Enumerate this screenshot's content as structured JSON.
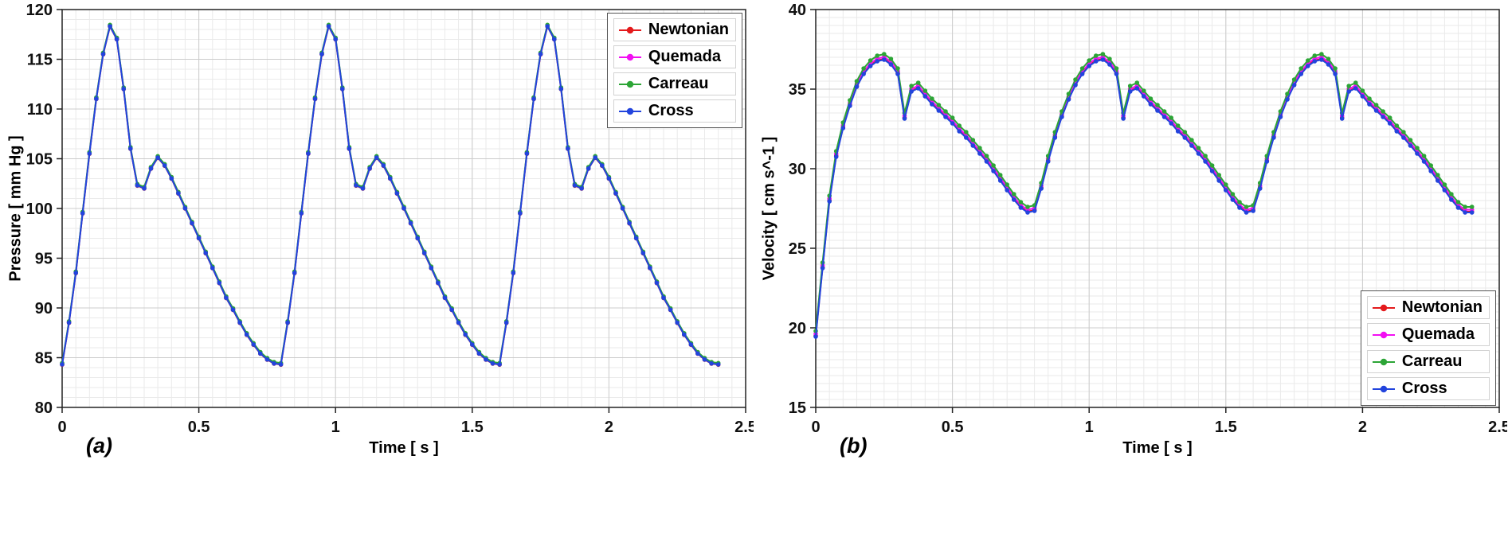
{
  "page": {
    "background": "#ffffff"
  },
  "chart_data": [
    {
      "id": "a",
      "type": "line",
      "panel_label": "(a)",
      "title": "",
      "xlabel": "Time [ s ]",
      "ylabel": "Pressure [ mm Hg ]",
      "xlim": [
        0,
        2.5
      ],
      "ylim": [
        80,
        120
      ],
      "xticks": [
        0,
        0.5,
        1,
        1.5,
        2,
        2.5
      ],
      "xtick_labels": [
        "0",
        "0.5",
        "1",
        "1.5",
        "2",
        "2.5"
      ],
      "yticks": [
        80,
        85,
        90,
        95,
        100,
        105,
        110,
        115,
        120
      ],
      "ytick_labels": [
        "80",
        "85",
        "90",
        "95",
        "100",
        "105",
        "110",
        "115",
        "120"
      ],
      "grid": {
        "x_minor": 0.05,
        "y_minor": 1,
        "minor_color": "#eaeaea",
        "major_color": "#cccccc"
      },
      "legend_position": "top-right",
      "x": [
        0,
        0.025,
        0.05,
        0.075,
        0.1,
        0.125,
        0.15,
        0.175,
        0.2,
        0.225,
        0.25,
        0.275,
        0.3,
        0.325,
        0.35,
        0.375,
        0.4,
        0.425,
        0.45,
        0.475,
        0.5,
        0.525,
        0.55,
        0.575,
        0.6,
        0.625,
        0.65,
        0.675,
        0.7,
        0.725,
        0.75,
        0.775,
        0.8,
        0.825,
        0.85,
        0.875,
        0.9,
        0.925,
        0.95,
        0.975,
        1,
        1.025,
        1.05,
        1.075,
        1.1,
        1.125,
        1.15,
        1.175,
        1.2,
        1.225,
        1.25,
        1.275,
        1.3,
        1.325,
        1.35,
        1.375,
        1.4,
        1.425,
        1.45,
        1.475,
        1.5,
        1.525,
        1.55,
        1.575,
        1.6,
        1.625,
        1.65,
        1.675,
        1.7,
        1.725,
        1.75,
        1.775,
        1.8,
        1.825,
        1.85,
        1.875,
        1.9,
        1.925,
        1.95,
        1.975,
        2,
        2.025,
        2.05,
        2.075,
        2.1,
        2.125,
        2.15,
        2.175,
        2.2,
        2.225,
        2.25,
        2.275,
        2.3,
        2.325,
        2.35,
        2.375,
        2.4
      ],
      "base_values": [
        84.3,
        88.5,
        93.5,
        99.5,
        105.5,
        111,
        115.5,
        118.3,
        117,
        112,
        106,
        102.3,
        102,
        104,
        105.1,
        104.3,
        103,
        101.5,
        100,
        98.5,
        97,
        95.5,
        94,
        92.5,
        91,
        89.8,
        88.5,
        87.3,
        86.3,
        85.4,
        84.8,
        84.4,
        84.3,
        88.5,
        93.5,
        99.5,
        105.5,
        111,
        115.5,
        118.3,
        117,
        112,
        106,
        102.3,
        102,
        104,
        105.1,
        104.3,
        103,
        101.5,
        100,
        98.5,
        97,
        95.5,
        94,
        92.5,
        91,
        89.8,
        88.5,
        87.3,
        86.3,
        85.4,
        84.8,
        84.4,
        84.3,
        88.5,
        93.5,
        99.5,
        105.5,
        111,
        115.5,
        118.3,
        117,
        112,
        106,
        102.3,
        102,
        104,
        105.1,
        104.3,
        103,
        101.5,
        100,
        98.5,
        97,
        95.5,
        94,
        92.5,
        91,
        89.8,
        88.5,
        87.3,
        86.3,
        85.4,
        84.8,
        84.4,
        84.3
      ],
      "series": [
        {
          "name": "Newtonian",
          "color": "#e41a1c",
          "marker": "circle",
          "offset": 0
        },
        {
          "name": "Quemada",
          "color": "#f20ff2",
          "marker": "circle",
          "offset": 0.08
        },
        {
          "name": "Carreau",
          "color": "#2ca536",
          "marker": "circle",
          "offset": 0.16
        },
        {
          "name": "Cross",
          "color": "#2244dd",
          "marker": "circle",
          "offset": 0.02
        }
      ]
    },
    {
      "id": "b",
      "type": "line",
      "panel_label": "(b)",
      "title": "",
      "xlabel": "Time [ s ]",
      "ylabel": "Velocity [ cm s^-1 ]",
      "xlim": [
        0,
        2.5
      ],
      "ylim": [
        15,
        40
      ],
      "xticks": [
        0,
        0.5,
        1,
        1.5,
        2,
        2.5
      ],
      "xtick_labels": [
        "0",
        "0.5",
        "1",
        "1.5",
        "2",
        "2.5"
      ],
      "yticks": [
        15,
        20,
        25,
        30,
        35,
        40
      ],
      "ytick_labels": [
        "15",
        "20",
        "25",
        "30",
        "35",
        "40"
      ],
      "grid": {
        "x_minor": 0.05,
        "y_minor": 0.5,
        "minor_color": "#eaeaea",
        "major_color": "#cccccc"
      },
      "legend_position": "bottom-right",
      "x": [
        0,
        0.025,
        0.05,
        0.075,
        0.1,
        0.125,
        0.15,
        0.175,
        0.2,
        0.225,
        0.25,
        0.275,
        0.3,
        0.325,
        0.35,
        0.375,
        0.4,
        0.425,
        0.45,
        0.475,
        0.5,
        0.525,
        0.55,
        0.575,
        0.6,
        0.625,
        0.65,
        0.675,
        0.7,
        0.725,
        0.75,
        0.775,
        0.8,
        0.825,
        0.85,
        0.875,
        0.9,
        0.925,
        0.95,
        0.975,
        1,
        1.025,
        1.05,
        1.075,
        1.1,
        1.125,
        1.15,
        1.175,
        1.2,
        1.225,
        1.25,
        1.275,
        1.3,
        1.325,
        1.35,
        1.375,
        1.4,
        1.425,
        1.45,
        1.475,
        1.5,
        1.525,
        1.55,
        1.575,
        1.6,
        1.625,
        1.65,
        1.675,
        1.7,
        1.725,
        1.75,
        1.775,
        1.8,
        1.825,
        1.85,
        1.875,
        1.9,
        1.925,
        1.95,
        1.975,
        2,
        2.025,
        2.05,
        2.075,
        2.1,
        2.125,
        2.15,
        2.175,
        2.2,
        2.225,
        2.25,
        2.275,
        2.3,
        2.325,
        2.35,
        2.375,
        2.4
      ],
      "base_values": [
        19.5,
        23.8,
        28,
        30.8,
        32.6,
        34,
        35.2,
        36,
        36.5,
        36.8,
        36.9,
        36.6,
        36,
        33.2,
        34.9,
        35.1,
        34.6,
        34.1,
        33.7,
        33.3,
        32.9,
        32.4,
        32,
        31.5,
        31,
        30.5,
        29.9,
        29.3,
        28.7,
        28.1,
        27.6,
        27.3,
        27.4,
        28.8,
        30.5,
        32,
        33.3,
        34.4,
        35.3,
        36,
        36.5,
        36.8,
        36.9,
        36.6,
        36,
        33.2,
        34.9,
        35.1,
        34.6,
        34.1,
        33.7,
        33.3,
        32.9,
        32.4,
        32,
        31.5,
        31,
        30.5,
        29.9,
        29.3,
        28.7,
        28.1,
        27.6,
        27.3,
        27.4,
        28.8,
        30.5,
        32,
        33.3,
        34.4,
        35.3,
        36,
        36.5,
        36.8,
        36.9,
        36.6,
        36,
        33.2,
        34.9,
        35.1,
        34.6,
        34.1,
        33.7,
        33.3,
        32.9,
        32.4,
        32,
        31.5,
        31,
        30.5,
        29.9,
        29.3,
        28.7,
        28.1,
        27.6,
        27.3,
        27.3
      ],
      "series": [
        {
          "name": "Newtonian",
          "color": "#e41a1c",
          "marker": "circle",
          "offset": 0
        },
        {
          "name": "Quemada",
          "color": "#f20ff2",
          "marker": "circle",
          "offset": 0.12
        },
        {
          "name": "Carreau",
          "color": "#2ca536",
          "marker": "circle",
          "offset": 0.3
        },
        {
          "name": "Cross",
          "color": "#2244dd",
          "marker": "circle",
          "offset": -0.05
        }
      ]
    }
  ]
}
